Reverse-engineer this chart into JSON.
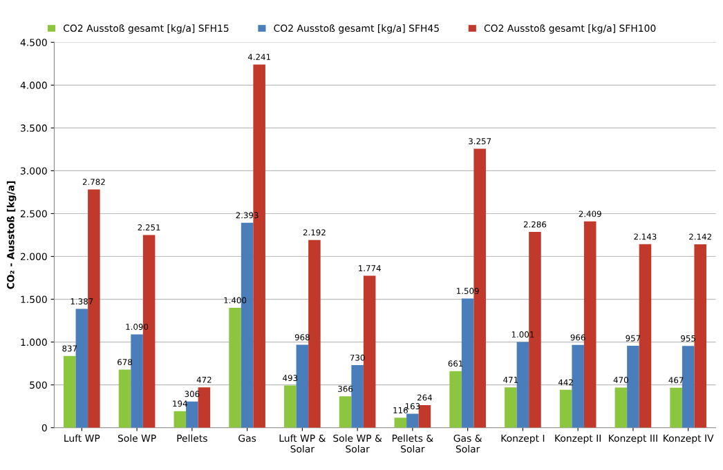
{
  "chart_data": {
    "type": "bar",
    "ylabel": "CO₂ - Ausstoß [kg/a]",
    "categories": [
      "Luft WP",
      "Sole WP",
      "Pellets",
      "Gas",
      "Luft WP &\nSolar",
      "Sole WP &\nSolar",
      "Pellets &\nSolar",
      "Gas &\nSolar",
      "Konzept I",
      "Konzept II",
      "Konzept III",
      "Konzept IV"
    ],
    "series": [
      {
        "name": "CO2 Ausstoß gesamt [kg/a] SFH15",
        "color": "#8cc63f",
        "values": [
          837,
          678,
          194,
          1400,
          493,
          366,
          116,
          661,
          471,
          442,
          470,
          467
        ],
        "value_labels": [
          "837",
          "678",
          "194",
          "1.400",
          "493",
          "366",
          "116",
          "661",
          "471",
          "442",
          "470",
          "467"
        ]
      },
      {
        "name": "CO2 Ausstoß gesamt [kg/a] SFH45",
        "color": "#4a7ebb",
        "values": [
          1387,
          1090,
          306,
          2393,
          968,
          730,
          163,
          1509,
          1001,
          966,
          957,
          955
        ],
        "value_labels": [
          "1.387",
          "1.090",
          "306",
          "2.393",
          "968",
          "730",
          "163",
          "1.509",
          "1.001",
          "966",
          "957",
          "955"
        ]
      },
      {
        "name": "CO2 Ausstoß gesamt [kg/a] SFH100",
        "color": "#c0392b",
        "values": [
          2782,
          2251,
          472,
          4241,
          2192,
          1774,
          264,
          3257,
          2286,
          2409,
          2143,
          2142
        ],
        "value_labels": [
          "2.782",
          "2.251",
          "472",
          "4.241",
          "2.192",
          "1.774",
          "264",
          "3.257",
          "2.286",
          "2.409",
          "2.143",
          "2.142"
        ]
      }
    ],
    "ylim": [
      0,
      4500
    ],
    "yticks": [
      0,
      {
        "value": 500,
        "label": "500"
      },
      {
        "value": 1000,
        "label": "1.000"
      },
      {
        "value": 1500,
        "label": "1.500"
      },
      {
        "value": 2000,
        "label": "2.000"
      },
      {
        "value": 2500,
        "label": "2.500"
      },
      {
        "value": 3000,
        "label": "3.000"
      },
      {
        "value": 3500,
        "label": "3.500"
      },
      {
        "value": 4000,
        "label": "4.000"
      },
      {
        "value": 4500,
        "label": "4.500"
      }
    ],
    "grid": "y",
    "legend": "top"
  }
}
